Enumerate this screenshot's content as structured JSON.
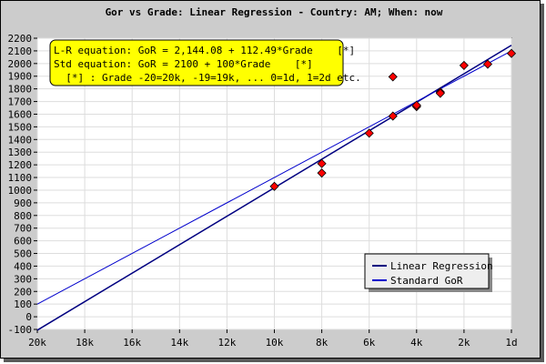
{
  "chart_data": {
    "type": "scatter",
    "title": "Gor vs Grade: Linear Regression - Country: AM; When: now",
    "xlabel": "",
    "ylabel": "",
    "xlim": [
      -20,
      0
    ],
    "ylim": [
      -100,
      2200
    ],
    "grid": true,
    "x_ticks": [
      {
        "value": -20,
        "label": "20k"
      },
      {
        "value": -18,
        "label": "18k"
      },
      {
        "value": -16,
        "label": "16k"
      },
      {
        "value": -14,
        "label": "14k"
      },
      {
        "value": -12,
        "label": "12k"
      },
      {
        "value": -10,
        "label": "10k"
      },
      {
        "value": -8,
        "label": "8k"
      },
      {
        "value": -6,
        "label": "6k"
      },
      {
        "value": -4,
        "label": "4k"
      },
      {
        "value": -2,
        "label": "2k"
      },
      {
        "value": 0,
        "label": "1d"
      }
    ],
    "y_ticks": [
      -100,
      0,
      100,
      200,
      300,
      400,
      500,
      600,
      700,
      800,
      900,
      1000,
      1100,
      1200,
      1300,
      1400,
      1500,
      1600,
      1700,
      1800,
      1900,
      2000,
      2100,
      2200
    ],
    "points": [
      {
        "x": -10,
        "y": 1030
      },
      {
        "x": -8,
        "y": 1210
      },
      {
        "x": -8,
        "y": 1135
      },
      {
        "x": -6,
        "y": 1450
      },
      {
        "x": -5,
        "y": 1585
      },
      {
        "x": -5,
        "y": 1895
      },
      {
        "x": -4,
        "y": 1660
      },
      {
        "x": -4,
        "y": 1670
      },
      {
        "x": -3,
        "y": 1775
      },
      {
        "x": -3,
        "y": 1765
      },
      {
        "x": -2,
        "y": 1985
      },
      {
        "x": -1,
        "y": 1995
      },
      {
        "x": 0,
        "y": 2080
      }
    ],
    "series": [
      {
        "name": "Linear Regression",
        "intercept": 2144.08,
        "slope": 112.49,
        "color": "#000080"
      },
      {
        "name": "Standard GoR",
        "intercept": 2100,
        "slope": 100,
        "color": "#0000cc"
      }
    ],
    "annotations": [
      "L-R equation: GoR = 2,144.08 + 112.49*Grade    [*]",
      "Std equation: GoR = 2100 + 100*Grade    [*]",
      "  [*] : Grade -20=20k, -19=19k, ... 0=1d, 1=2d etc."
    ],
    "legend_position": "bottom-right",
    "colors": {
      "background": "#cccccc",
      "plot": "#ffffff",
      "grid": "#dddddd",
      "point_fill": "#ff0000",
      "annotation_box": "#ffff00"
    }
  }
}
